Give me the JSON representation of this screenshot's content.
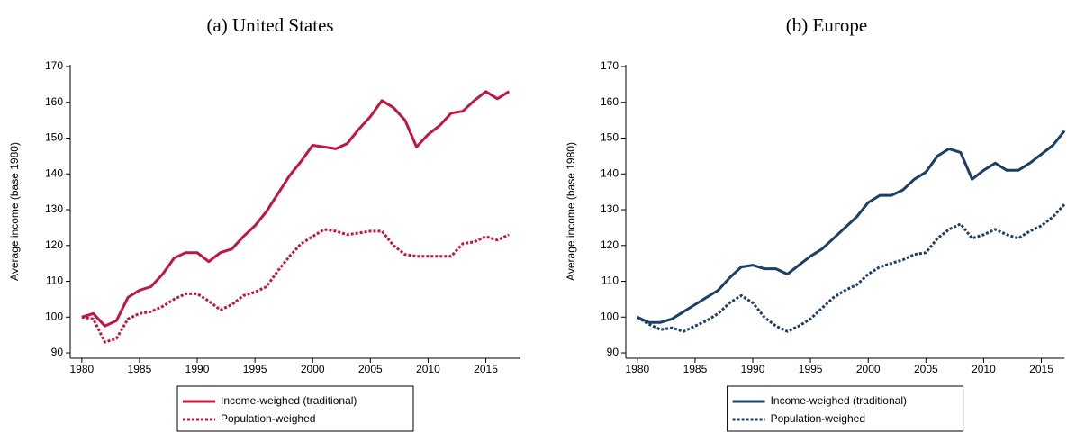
{
  "chart_data": [
    {
      "type": "line",
      "title": "(a) United States",
      "y_label": "Average income (base 1980)",
      "x": [
        1980,
        1981,
        1982,
        1983,
        1984,
        1985,
        1986,
        1987,
        1988,
        1989,
        1990,
        1991,
        1992,
        1993,
        1994,
        1995,
        1996,
        1997,
        1998,
        1999,
        2000,
        2001,
        2002,
        2003,
        2004,
        2005,
        2006,
        2007,
        2008,
        2009,
        2010,
        2011,
        2012,
        2013,
        2014,
        2015,
        2016,
        2017
      ],
      "series": [
        {
          "name": "Income-weighed (traditional)",
          "color": "#c0173f",
          "style": "solid",
          "values": [
            100,
            101,
            97.5,
            99,
            105.5,
            107.5,
            108.5,
            112,
            116.5,
            118,
            118,
            115.5,
            118,
            119,
            122.5,
            125.5,
            129.5,
            134.5,
            139.5,
            143.5,
            148,
            147.5,
            147,
            148.5,
            152.5,
            156,
            160.5,
            158.5,
            155,
            147.5,
            151,
            153.5,
            157,
            157.5,
            160.5,
            163,
            161,
            163
          ]
        },
        {
          "name": "Population-weighed",
          "color": "#c0173f",
          "style": "dotted",
          "values": [
            100,
            99.5,
            93,
            94,
            99.5,
            101,
            101.5,
            103,
            105,
            106.5,
            106.5,
            104.5,
            102,
            103.5,
            106,
            107,
            108.5,
            113,
            117,
            120.5,
            122.5,
            124.5,
            124,
            123,
            123.5,
            124,
            124,
            120,
            117.5,
            117,
            117,
            117,
            117,
            120.5,
            121,
            122.5,
            121.5,
            123
          ]
        }
      ],
      "xlim": [
        1979,
        2018
      ],
      "ylim": [
        88.5,
        170.5
      ],
      "xticks": [
        1980,
        1985,
        1990,
        1995,
        2000,
        2005,
        2010,
        2015
      ],
      "yticks": [
        90,
        100,
        110,
        120,
        130,
        140,
        150,
        160,
        170
      ],
      "legend": "bottom"
    },
    {
      "type": "line",
      "title": "(b) Europe",
      "y_label": "Average income (base 1980)",
      "x": [
        1980,
        1981,
        1982,
        1983,
        1984,
        1985,
        1986,
        1987,
        1988,
        1989,
        1990,
        1991,
        1992,
        1993,
        1994,
        1995,
        1996,
        1997,
        1998,
        1999,
        2000,
        2001,
        2002,
        2003,
        2004,
        2005,
        2006,
        2007,
        2008,
        2009,
        2010,
        2011,
        2012,
        2013,
        2014,
        2015,
        2016,
        2017
      ],
      "series": [
        {
          "name": "Income-weighed (traditional)",
          "color": "#1c3f66",
          "style": "solid",
          "values": [
            100,
            98.5,
            98.5,
            99.5,
            101.5,
            103.5,
            105.5,
            107.5,
            111,
            114,
            114.5,
            113.5,
            113.5,
            112,
            114.5,
            117,
            119,
            122,
            125,
            128,
            132,
            134,
            134,
            135.5,
            138.5,
            140.5,
            145,
            147,
            146,
            138.5,
            141,
            143,
            141,
            141,
            143,
            145.5,
            148,
            152
          ]
        },
        {
          "name": "Population-weighed",
          "color": "#1c3f66",
          "style": "dotted",
          "values": [
            100,
            98,
            96.5,
            97,
            96,
            97.5,
            99,
            101,
            104,
            106,
            104,
            100,
            97.5,
            96,
            97.5,
            99.5,
            102.5,
            105.5,
            107.5,
            109,
            112,
            114,
            115,
            116,
            117.5,
            118,
            122,
            124.5,
            126,
            122,
            123,
            124.5,
            123,
            122,
            124,
            125.5,
            128,
            131.5
          ]
        }
      ],
      "xlim": [
        1979,
        2017
      ],
      "ylim": [
        88.5,
        170.5
      ],
      "xticks": [
        1980,
        1985,
        1990,
        1995,
        2000,
        2005,
        2010,
        2015
      ],
      "yticks": [
        90,
        100,
        110,
        120,
        130,
        140,
        150,
        160,
        170
      ],
      "legend": "bottom"
    }
  ]
}
